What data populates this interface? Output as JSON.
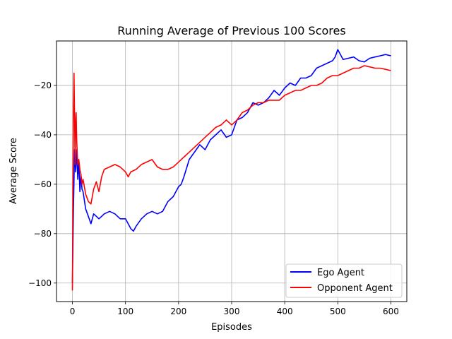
{
  "chart_data": {
    "type": "line",
    "title": "Running Average of Previous 100 Scores",
    "xlabel": "Episodes",
    "ylabel": "Average Score",
    "xlim": [
      -30,
      630
    ],
    "ylim": [
      -107.5,
      -2
    ],
    "xticks": [
      0,
      100,
      200,
      300,
      400,
      500,
      600
    ],
    "yticks": [
      -100,
      -80,
      -60,
      -40,
      -20
    ],
    "grid": true,
    "legend_position": "lower right",
    "series": [
      {
        "name": "Ego Agent",
        "color": "#0000ff",
        "x": [
          0,
          2,
          4,
          6,
          8,
          10,
          12,
          14,
          16,
          18,
          20,
          25,
          30,
          35,
          40,
          45,
          50,
          55,
          60,
          70,
          80,
          90,
          100,
          110,
          115,
          120,
          130,
          140,
          150,
          160,
          170,
          180,
          190,
          200,
          205,
          210,
          220,
          230,
          240,
          250,
          260,
          270,
          280,
          290,
          300,
          310,
          320,
          330,
          340,
          350,
          360,
          370,
          380,
          390,
          400,
          410,
          420,
          430,
          440,
          450,
          460,
          470,
          480,
          490,
          495,
          500,
          510,
          520,
          530,
          540,
          550,
          560,
          570,
          580,
          590,
          600
        ],
        "y": [
          -100,
          -70,
          -46,
          -55,
          -46,
          -58,
          -50,
          -63,
          -56,
          -62,
          -63,
          -70,
          -73,
          -76,
          -72,
          -73,
          -74,
          -73,
          -72,
          -71,
          -72,
          -74,
          -74,
          -78,
          -79,
          -77,
          -74,
          -72,
          -71,
          -72,
          -71,
          -67,
          -65,
          -61,
          -60,
          -57,
          -50,
          -47,
          -44,
          -46,
          -42,
          -40,
          -38,
          -41,
          -40,
          -34,
          -33,
          -31,
          -27,
          -28,
          -27,
          -25,
          -22,
          -24,
          -21,
          -19,
          -20,
          -17,
          -17,
          -16,
          -13,
          -12,
          -11,
          -10,
          -8.5,
          -5.5,
          -9.5,
          -9,
          -8.5,
          -10,
          -10.5,
          -9,
          -8.5,
          -8,
          -7.5,
          -8
        ]
      },
      {
        "name": "Opponent Agent",
        "color": "#ff0000",
        "x": [
          0,
          1,
          2,
          3,
          4,
          5,
          6,
          7,
          8,
          10,
          12,
          14,
          16,
          18,
          20,
          25,
          30,
          35,
          40,
          45,
          50,
          55,
          60,
          70,
          80,
          90,
          100,
          105,
          110,
          120,
          130,
          140,
          150,
          160,
          170,
          180,
          190,
          200,
          210,
          220,
          230,
          240,
          250,
          260,
          270,
          280,
          290,
          300,
          310,
          320,
          330,
          340,
          350,
          360,
          370,
          380,
          390,
          400,
          410,
          420,
          430,
          440,
          450,
          460,
          470,
          480,
          490,
          500,
          510,
          520,
          530,
          540,
          550,
          560,
          570,
          580,
          590,
          600
        ],
        "y": [
          -103,
          -60,
          -30,
          -15,
          -33,
          -52,
          -35,
          -31,
          -42,
          -52,
          -50,
          -54,
          -56,
          -60,
          -58,
          -64,
          -67,
          -68,
          -62,
          -59,
          -63,
          -57,
          -54,
          -53,
          -52,
          -53,
          -55,
          -57,
          -55,
          -54,
          -52,
          -51,
          -50,
          -53,
          -54,
          -54,
          -53,
          -51,
          -49,
          -47,
          -45,
          -43,
          -41,
          -39,
          -37,
          -36,
          -34,
          -36,
          -34,
          -31,
          -30,
          -28,
          -27,
          -27,
          -26,
          -26,
          -26,
          -24,
          -23,
          -22,
          -22,
          -21,
          -20,
          -20,
          -19,
          -17,
          -16,
          -16,
          -15,
          -14,
          -13,
          -13,
          -12,
          -12.5,
          -13,
          -13,
          -13.5,
          -14
        ]
      }
    ]
  }
}
